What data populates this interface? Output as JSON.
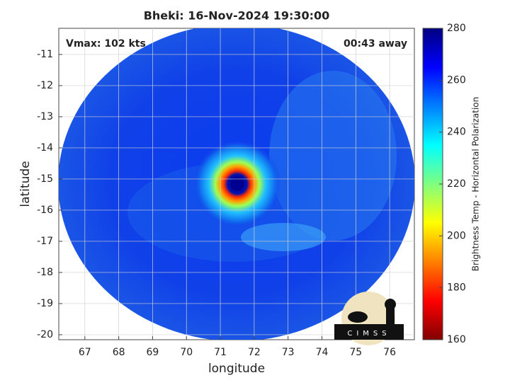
{
  "title": "Bheki: 16-Nov-2024 19:30:00",
  "annotations": {
    "vmax": "Vmax: 102 kts",
    "away": "00:43 away"
  },
  "x_axis": {
    "label": "longitude",
    "lim": [
      66.23,
      76.73
    ],
    "ticks": [
      67,
      68,
      69,
      70,
      71,
      72,
      73,
      74,
      75,
      76
    ]
  },
  "y_axis": {
    "label": "latitude",
    "lim": [
      -20.16,
      -10.16
    ],
    "ticks": [
      -11,
      -12,
      -13,
      -14,
      -15,
      -16,
      -17,
      -18,
      -19,
      -20
    ]
  },
  "colorbar": {
    "label": "Brightness Temp - Horizontal Polarization",
    "lim": [
      160,
      280
    ],
    "ticks": [
      160,
      180,
      200,
      220,
      240,
      260,
      280
    ]
  },
  "logo": "CIMSS"
}
